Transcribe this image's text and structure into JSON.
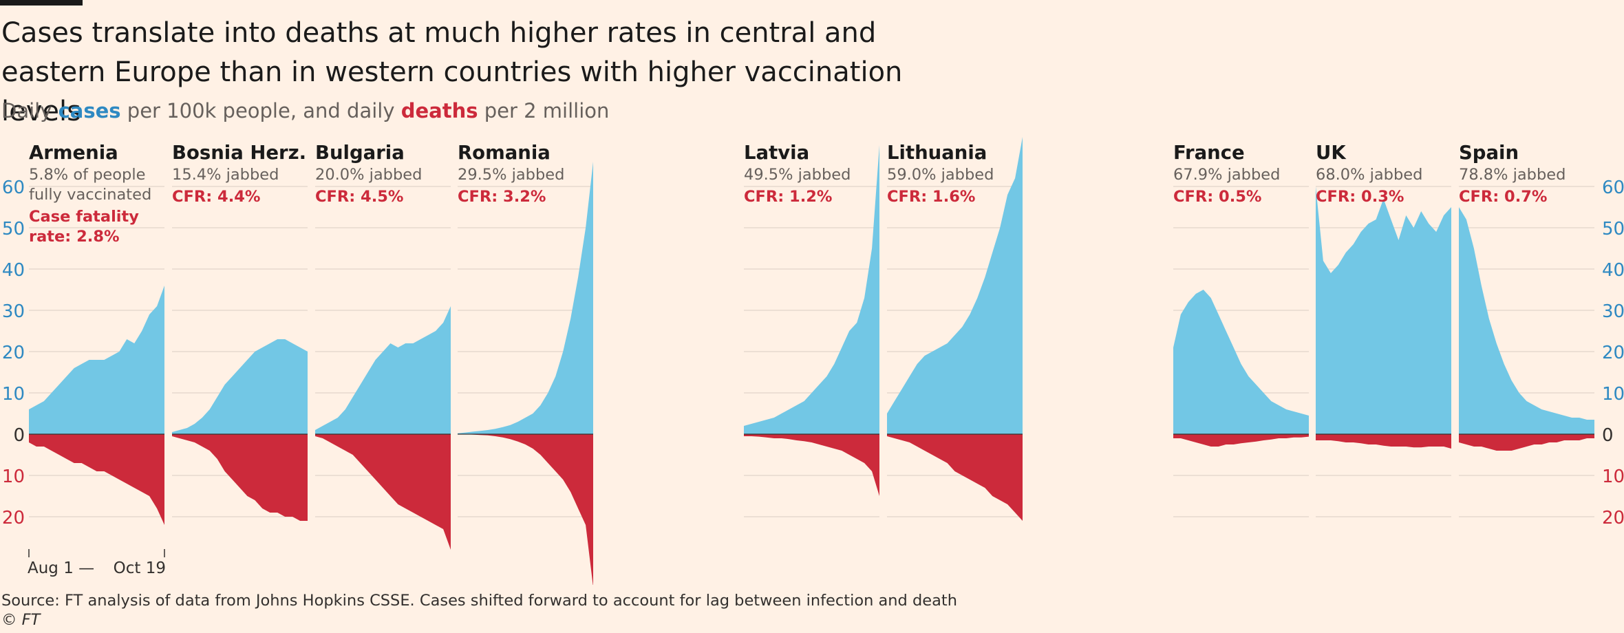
{
  "title": "Cases translate into deaths at much higher rates in central and eastern Europe than in western countries with higher vaccination levels",
  "subtitle": {
    "prefix": "Daily ",
    "cases_word": "cases",
    "middle": " per 100k people, and daily ",
    "deaths_word": "deaths",
    "suffix": " per 2 million"
  },
  "source": "Source: FT analysis of data from Johns Hopkins CSSE. Cases shifted forward to account for lag between infection and death",
  "copyright": "© FT",
  "colors": {
    "background": "#fff1e5",
    "cases": "#72c7e5",
    "deaths": "#cc2a3b",
    "cases_text": "#2e89c2",
    "deaths_text": "#cc2a3b",
    "grid": "#e6d9ce"
  },
  "chart_data": {
    "type": "area",
    "layout": "small-multiples",
    "y_ticks_up": [
      0,
      10,
      20,
      30,
      40,
      50,
      60
    ],
    "y_ticks_down": [
      10,
      20
    ],
    "ylim": [
      -20,
      60
    ],
    "x_start_label": "Aug 1 —",
    "x_end_label": "Oct 19",
    "first_panel_note": "Case fatality rate: 2.8%",
    "panels": [
      {
        "name": "Armenia",
        "vacc": "5.8% of people",
        "vacc2": "fully vaccinated",
        "cfr": "Case fatality",
        "cfr2": "rate: 2.8%",
        "cases": [
          6,
          7,
          8,
          10,
          12,
          14,
          16,
          17,
          18,
          18,
          18,
          19,
          20,
          23,
          22,
          25,
          29,
          31,
          36
        ],
        "deaths": [
          2,
          3,
          3,
          4,
          5,
          6,
          7,
          7,
          8,
          9,
          9,
          10,
          11,
          12,
          13,
          14,
          15,
          18,
          22
        ]
      },
      {
        "name": "Bosnia Herz.",
        "vacc": "15.4% jabbed",
        "cfr": "CFR: 4.4%",
        "cases": [
          0.5,
          1,
          1.5,
          2.5,
          4,
          6,
          9,
          12,
          14,
          16,
          18,
          20,
          21,
          22,
          23,
          23,
          22,
          21,
          20
        ],
        "deaths": [
          0.5,
          1,
          1.5,
          2,
          3,
          4,
          6,
          9,
          11,
          13,
          15,
          16,
          18,
          19,
          19,
          20,
          20,
          21,
          21
        ]
      },
      {
        "name": "Bulgaria",
        "vacc": "20.0% jabbed",
        "cfr": "CFR: 4.5%",
        "cases": [
          1,
          2,
          3,
          4,
          6,
          9,
          12,
          15,
          18,
          20,
          22,
          21,
          22,
          22,
          23,
          24,
          25,
          27,
          31
        ],
        "deaths": [
          0.5,
          1,
          2,
          3,
          4,
          5,
          7,
          9,
          11,
          13,
          15,
          17,
          18,
          19,
          20,
          21,
          22,
          23,
          28
        ]
      },
      {
        "name": "Romania",
        "vacc": "29.5% jabbed",
        "cfr": "CFR: 3.2%",
        "cases": [
          0.2,
          0.4,
          0.6,
          0.8,
          1,
          1.3,
          1.7,
          2.2,
          3,
          4,
          5,
          7,
          10,
          14,
          20,
          28,
          38,
          50,
          66
        ],
        "deaths": [
          0,
          0,
          0.1,
          0.2,
          0.3,
          0.5,
          0.8,
          1.2,
          1.8,
          2.5,
          3.5,
          5,
          7,
          9,
          11,
          14,
          18,
          22,
          37
        ]
      },
      {
        "name": "Latvia",
        "vacc": "49.5% jabbed",
        "cfr": "CFR: 1.2%",
        "cases": [
          2,
          2.5,
          3,
          3.5,
          4,
          5,
          6,
          7,
          8,
          10,
          12,
          14,
          17,
          21,
          25,
          27,
          33,
          45,
          70
        ],
        "deaths": [
          0.5,
          0.5,
          0.6,
          0.8,
          1,
          1,
          1.2,
          1.5,
          1.7,
          2,
          2.5,
          3,
          3.5,
          4,
          5,
          6,
          7,
          9,
          15
        ]
      },
      {
        "name": "Lithuania",
        "vacc": "59.0% jabbed",
        "cfr": "CFR: 1.6%",
        "cases": [
          5,
          8,
          11,
          14,
          17,
          19,
          20,
          21,
          22,
          24,
          26,
          29,
          33,
          38,
          44,
          50,
          58,
          62,
          72
        ],
        "deaths": [
          0.5,
          1,
          1.5,
          2,
          3,
          4,
          5,
          6,
          7,
          9,
          10,
          11,
          12,
          13,
          15,
          16,
          17,
          19,
          21
        ]
      },
      {
        "name": "France",
        "vacc": "67.9% jabbed",
        "cfr": "CFR: 0.5%",
        "cases": [
          21,
          29,
          32,
          34,
          35,
          33,
          29,
          25,
          21,
          17,
          14,
          12,
          10,
          8,
          7,
          6,
          5.5,
          5,
          4.5
        ],
        "deaths": [
          1,
          1,
          1.5,
          2,
          2.5,
          3,
          3,
          2.5,
          2.5,
          2.2,
          2,
          1.8,
          1.5,
          1.3,
          1,
          1,
          0.8,
          0.8,
          0.6
        ]
      },
      {
        "name": "UK",
        "vacc": "68.0% jabbed",
        "cfr": "CFR: 0.3%",
        "cases": [
          60,
          42,
          39,
          41,
          44,
          46,
          49,
          51,
          52,
          57,
          52,
          47,
          53,
          50,
          54,
          51,
          49,
          53,
          55
        ],
        "deaths": [
          1.5,
          1.5,
          1.5,
          1.7,
          2,
          2,
          2.2,
          2.5,
          2.5,
          2.8,
          3,
          3,
          3,
          3.2,
          3.2,
          3,
          3,
          3,
          3.5
        ]
      },
      {
        "name": "Spain",
        "vacc": "78.8% jabbed",
        "cfr": "CFR: 0.7%",
        "cases": [
          55,
          52,
          45,
          36,
          28,
          22,
          17,
          13,
          10,
          8,
          7,
          6,
          5.5,
          5,
          4.5,
          4,
          4,
          3.5,
          3.5
        ],
        "deaths": [
          2,
          2.5,
          3,
          3,
          3.5,
          4,
          4,
          4,
          3.5,
          3,
          2.5,
          2.5,
          2,
          2,
          1.5,
          1.5,
          1.5,
          1,
          1
        ]
      }
    ]
  }
}
